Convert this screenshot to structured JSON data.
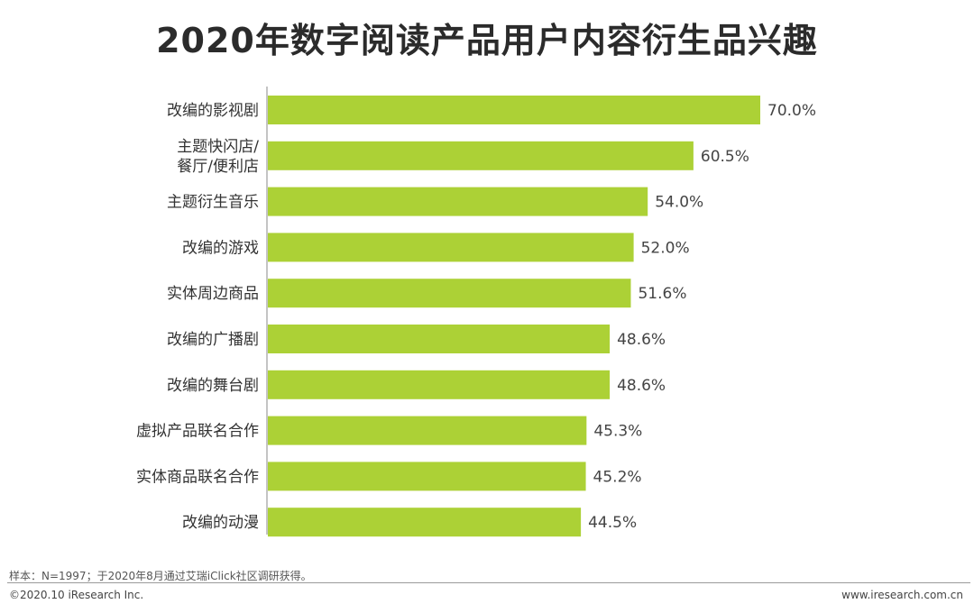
{
  "header": {
    "title": "2020年数字阅读产品用户内容衍生品兴趣"
  },
  "footer": {
    "note": "样本：N=1997；于2020年8月通过艾瑞iClick社区调研获得。",
    "copyright": "©2020.10 iResearch Inc.",
    "website": "www.iresearch.com.cn"
  },
  "chart_data": {
    "type": "bar",
    "orientation": "horizontal",
    "title": "2020年数字阅读产品用户内容衍生品兴趣",
    "categories": [
      [
        "改编的影视剧"
      ],
      [
        "主题快闪店/",
        "餐厅/便利店"
      ],
      [
        "主题衍生音乐"
      ],
      [
        "改编的游戏"
      ],
      [
        "实体周边商品"
      ],
      [
        "改编的广播剧"
      ],
      [
        "改编的舞台剧"
      ],
      [
        "虚拟产品联名合作"
      ],
      [
        "实体商品联名合作"
      ],
      [
        "改编的动漫"
      ]
    ],
    "values": [
      70.0,
      60.5,
      54.0,
      52.0,
      51.6,
      48.6,
      48.6,
      45.3,
      45.2,
      44.5
    ],
    "value_labels": [
      "70.0%",
      "60.5%",
      "54.0%",
      "52.0%",
      "51.6%",
      "48.6%",
      "48.6%",
      "45.3%",
      "45.2%",
      "44.5%"
    ],
    "unit": "%",
    "xlim": [
      0,
      100
    ],
    "bar_color": "#acd136",
    "grid": false,
    "legend": "none"
  }
}
